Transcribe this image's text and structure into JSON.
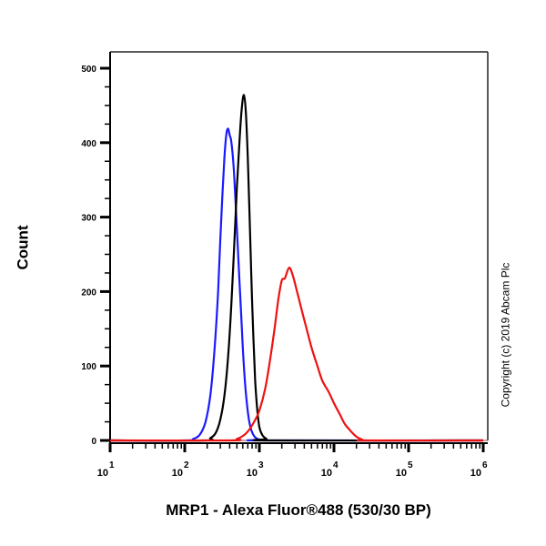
{
  "chart_data": {
    "type": "line",
    "title": "",
    "xlabel": "MRP1 - Alexa Fluor®488 (530/30 BP)",
    "ylabel": "Count",
    "xscale": "log",
    "xlim": [
      10,
      1000000
    ],
    "ylim": [
      0,
      500
    ],
    "x_ticks": [
      10,
      100,
      1000,
      10000,
      100000,
      1000000
    ],
    "x_tick_labels": [
      {
        "base": "10",
        "exp": "1"
      },
      {
        "base": "10",
        "exp": "2"
      },
      {
        "base": "10",
        "exp": "3"
      },
      {
        "base": "10",
        "exp": "4"
      },
      {
        "base": "10",
        "exp": "5"
      },
      {
        "base": "10",
        "exp": "6"
      }
    ],
    "y_ticks": [
      0,
      100,
      200,
      300,
      400,
      500
    ],
    "y_tick_labels": [
      "0",
      "100",
      "200",
      "300",
      "400",
      "500"
    ],
    "y_minor_step": 25,
    "grid": false,
    "legend": null,
    "annotation": "Copyright (c) 2019 Abcam Plc",
    "series": [
      {
        "name": "blue",
        "color": "#1a1aff",
        "points": [
          [
            10,
            0
          ],
          [
            100,
            0
          ],
          [
            130,
            2
          ],
          [
            160,
            8
          ],
          [
            190,
            25
          ],
          [
            220,
            60
          ],
          [
            250,
            120
          ],
          [
            280,
            200
          ],
          [
            300,
            270
          ],
          [
            320,
            330
          ],
          [
            340,
            380
          ],
          [
            360,
            410
          ],
          [
            380,
            419
          ],
          [
            400,
            410
          ],
          [
            420,
            402
          ],
          [
            450,
            370
          ],
          [
            480,
            320
          ],
          [
            520,
            250
          ],
          [
            570,
            170
          ],
          [
            620,
            100
          ],
          [
            680,
            50
          ],
          [
            750,
            20
          ],
          [
            850,
            6
          ],
          [
            1000,
            1
          ],
          [
            1200,
            0
          ],
          [
            1000000,
            0
          ]
        ]
      },
      {
        "name": "black",
        "color": "#000000",
        "points": [
          [
            10,
            0
          ],
          [
            180,
            0
          ],
          [
            220,
            3
          ],
          [
            260,
            10
          ],
          [
            300,
            28
          ],
          [
            340,
            60
          ],
          [
            380,
            110
          ],
          [
            420,
            180
          ],
          [
            460,
            260
          ],
          [
            500,
            340
          ],
          [
            540,
            400
          ],
          [
            580,
            445
          ],
          [
            620,
            464
          ],
          [
            660,
            440
          ],
          [
            700,
            380
          ],
          [
            740,
            300
          ],
          [
            780,
            220
          ],
          [
            830,
            140
          ],
          [
            880,
            80
          ],
          [
            940,
            40
          ],
          [
            1000,
            18
          ],
          [
            1100,
            7
          ],
          [
            1250,
            2
          ],
          [
            1400,
            0
          ],
          [
            1000000,
            0
          ]
        ]
      },
      {
        "name": "red",
        "color": "#ee1111",
        "points": [
          [
            10,
            0
          ],
          [
            400,
            0
          ],
          [
            500,
            2
          ],
          [
            600,
            6
          ],
          [
            700,
            12
          ],
          [
            850,
            25
          ],
          [
            1000,
            40
          ],
          [
            1200,
            70
          ],
          [
            1400,
            110
          ],
          [
            1600,
            150
          ],
          [
            1800,
            190
          ],
          [
            2000,
            215
          ],
          [
            2200,
            218
          ],
          [
            2500,
            232
          ],
          [
            2800,
            222
          ],
          [
            3200,
            200
          ],
          [
            3700,
            175
          ],
          [
            4300,
            150
          ],
          [
            5000,
            125
          ],
          [
            6000,
            100
          ],
          [
            7000,
            80
          ],
          [
            8500,
            65
          ],
          [
            10000,
            50
          ],
          [
            12000,
            35
          ],
          [
            14000,
            22
          ],
          [
            17000,
            12
          ],
          [
            20000,
            5
          ],
          [
            24000,
            1
          ],
          [
            28000,
            0
          ],
          [
            1000000,
            0
          ]
        ]
      }
    ]
  },
  "labels": {
    "ylabel": "Count",
    "xlabel": "MRP1 - Alexa Fluor®488 (530/30 BP)",
    "copyright": "Copyright (c) 2019 Abcam Plc"
  }
}
